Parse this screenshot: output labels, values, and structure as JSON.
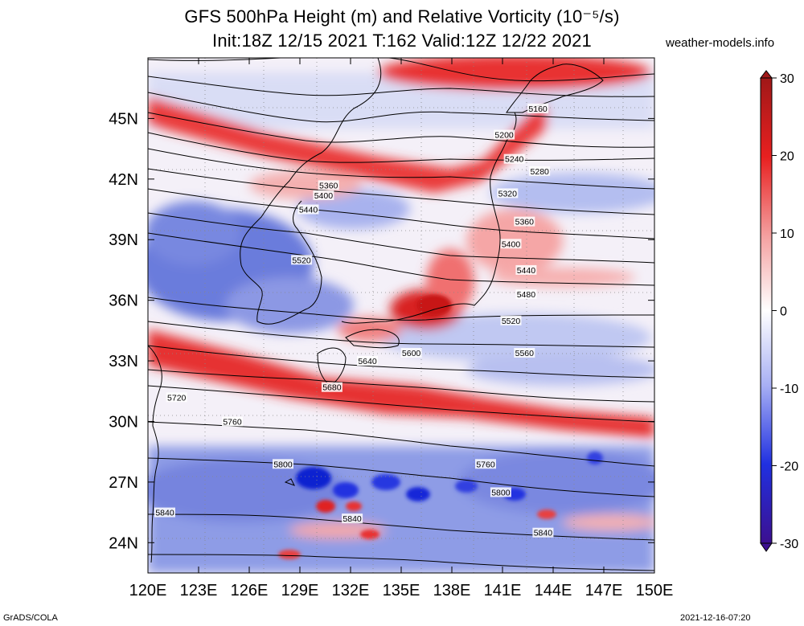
{
  "title": {
    "line1": "GFS 500hPa Height (m) and Relative Vorticity (10⁻⁵/s)",
    "line2": "Init:18Z 12/15 2021 T:162 Valid:12Z 12/22 2021"
  },
  "site": "weather-models.info",
  "map": {
    "lon_range": [
      120,
      150
    ],
    "lat_range": [
      22.5,
      48
    ],
    "lon_ticks": [
      "120E",
      "123E",
      "126E",
      "129E",
      "132E",
      "135E",
      "138E",
      "141E",
      "144E",
      "147E",
      "150E"
    ],
    "lat_ticks": [
      "45N",
      "42N",
      "39N",
      "36N",
      "33N",
      "30N",
      "27N",
      "24N"
    ],
    "height_contours": [
      {
        "label": "5160",
        "lat_at_150": 47.0
      },
      {
        "label": "5200",
        "lat_at_150": 45.6
      },
      {
        "label": "5240",
        "lat_at_150": 44.3
      },
      {
        "label": "5280",
        "lat_at_150": 43.2
      },
      {
        "label": "5320",
        "lat_at_150": 42.1
      },
      {
        "label": "5360",
        "lat_at_150": 40.6
      },
      {
        "label": "5400",
        "lat_at_150": 39.4
      },
      {
        "label": "5440",
        "lat_at_150": 38.3
      },
      {
        "label": "5480",
        "lat_at_150": 37.2
      },
      {
        "label": "5520",
        "lat_at_150": 35.8
      },
      {
        "label": "5560",
        "lat_at_150": 33.9
      },
      {
        "label": "5600",
        "lat_at_150": 32.0
      },
      {
        "label": "5640",
        "lat_at_150": 30.5
      },
      {
        "label": "5680",
        "lat_at_150": 29.4
      },
      {
        "label": "5720",
        "lat_at_150": 28.5
      },
      {
        "label": "5760",
        "lat_at_150": 27.4
      },
      {
        "label": "5800",
        "lat_at_150": 26.0
      },
      {
        "label": "5840",
        "lat_at_150": 23.8
      }
    ],
    "contour_label_positions": [
      {
        "label": "5160",
        "lon": 143.1,
        "lat": 45.5
      },
      {
        "label": "5200",
        "lon": 141.1,
        "lat": 44.2
      },
      {
        "label": "5240",
        "lon": 141.7,
        "lat": 43.0
      },
      {
        "label": "5280",
        "lon": 143.2,
        "lat": 42.4
      },
      {
        "label": "5320",
        "lon": 141.3,
        "lat": 41.3
      },
      {
        "label": "5360",
        "lon": 142.3,
        "lat": 39.9
      },
      {
        "label": "5400",
        "lon": 141.5,
        "lat": 38.8
      },
      {
        "label": "5440",
        "lon": 142.4,
        "lat": 37.5
      },
      {
        "label": "5480",
        "lon": 142.4,
        "lat": 36.3
      },
      {
        "label": "5520",
        "lon": 141.5,
        "lat": 35.0
      },
      {
        "label": "5560",
        "lon": 142.3,
        "lat": 33.4
      },
      {
        "label": "5360",
        "lon": 130.7,
        "lat": 41.7
      },
      {
        "label": "5400",
        "lon": 130.4,
        "lat": 41.2
      },
      {
        "label": "5440",
        "lon": 129.5,
        "lat": 40.5
      },
      {
        "label": "5520",
        "lon": 129.1,
        "lat": 38.0
      },
      {
        "label": "5600",
        "lon": 135.6,
        "lat": 33.4
      },
      {
        "label": "5640",
        "lon": 133.0,
        "lat": 33.0
      },
      {
        "label": "5680",
        "lon": 130.9,
        "lat": 31.7
      },
      {
        "label": "5720",
        "lon": 121.7,
        "lat": 31.2
      },
      {
        "label": "5760",
        "lon": 125.0,
        "lat": 30.0
      },
      {
        "label": "5800",
        "lon": 128.0,
        "lat": 27.9
      },
      {
        "label": "5760",
        "lon": 140.0,
        "lat": 27.9
      },
      {
        "label": "5800",
        "lon": 140.9,
        "lat": 26.5
      },
      {
        "label": "5840",
        "lon": 121.0,
        "lat": 25.5
      },
      {
        "label": "5840",
        "lon": 132.1,
        "lat": 25.2
      },
      {
        "label": "5840",
        "lon": 143.4,
        "lat": 24.5
      }
    ]
  },
  "colorbar": {
    "max": 30,
    "min": -30,
    "tick_labels": [
      "30",
      "20",
      "10",
      "0",
      "-10",
      "-20",
      "-30"
    ],
    "tick_values": [
      30,
      20,
      10,
      0,
      -10,
      -20,
      -30
    ],
    "colors": {
      "top": "#a01818",
      "red": "#e82020",
      "pink": "#f4a0a0",
      "white": "#ffffff",
      "lightblue": "#a8b0f4",
      "blue": "#2030e0",
      "bottom": "#3c1090"
    }
  },
  "footer": {
    "left": "GrADS/COLA",
    "right": "2021-12-16-07:20"
  }
}
